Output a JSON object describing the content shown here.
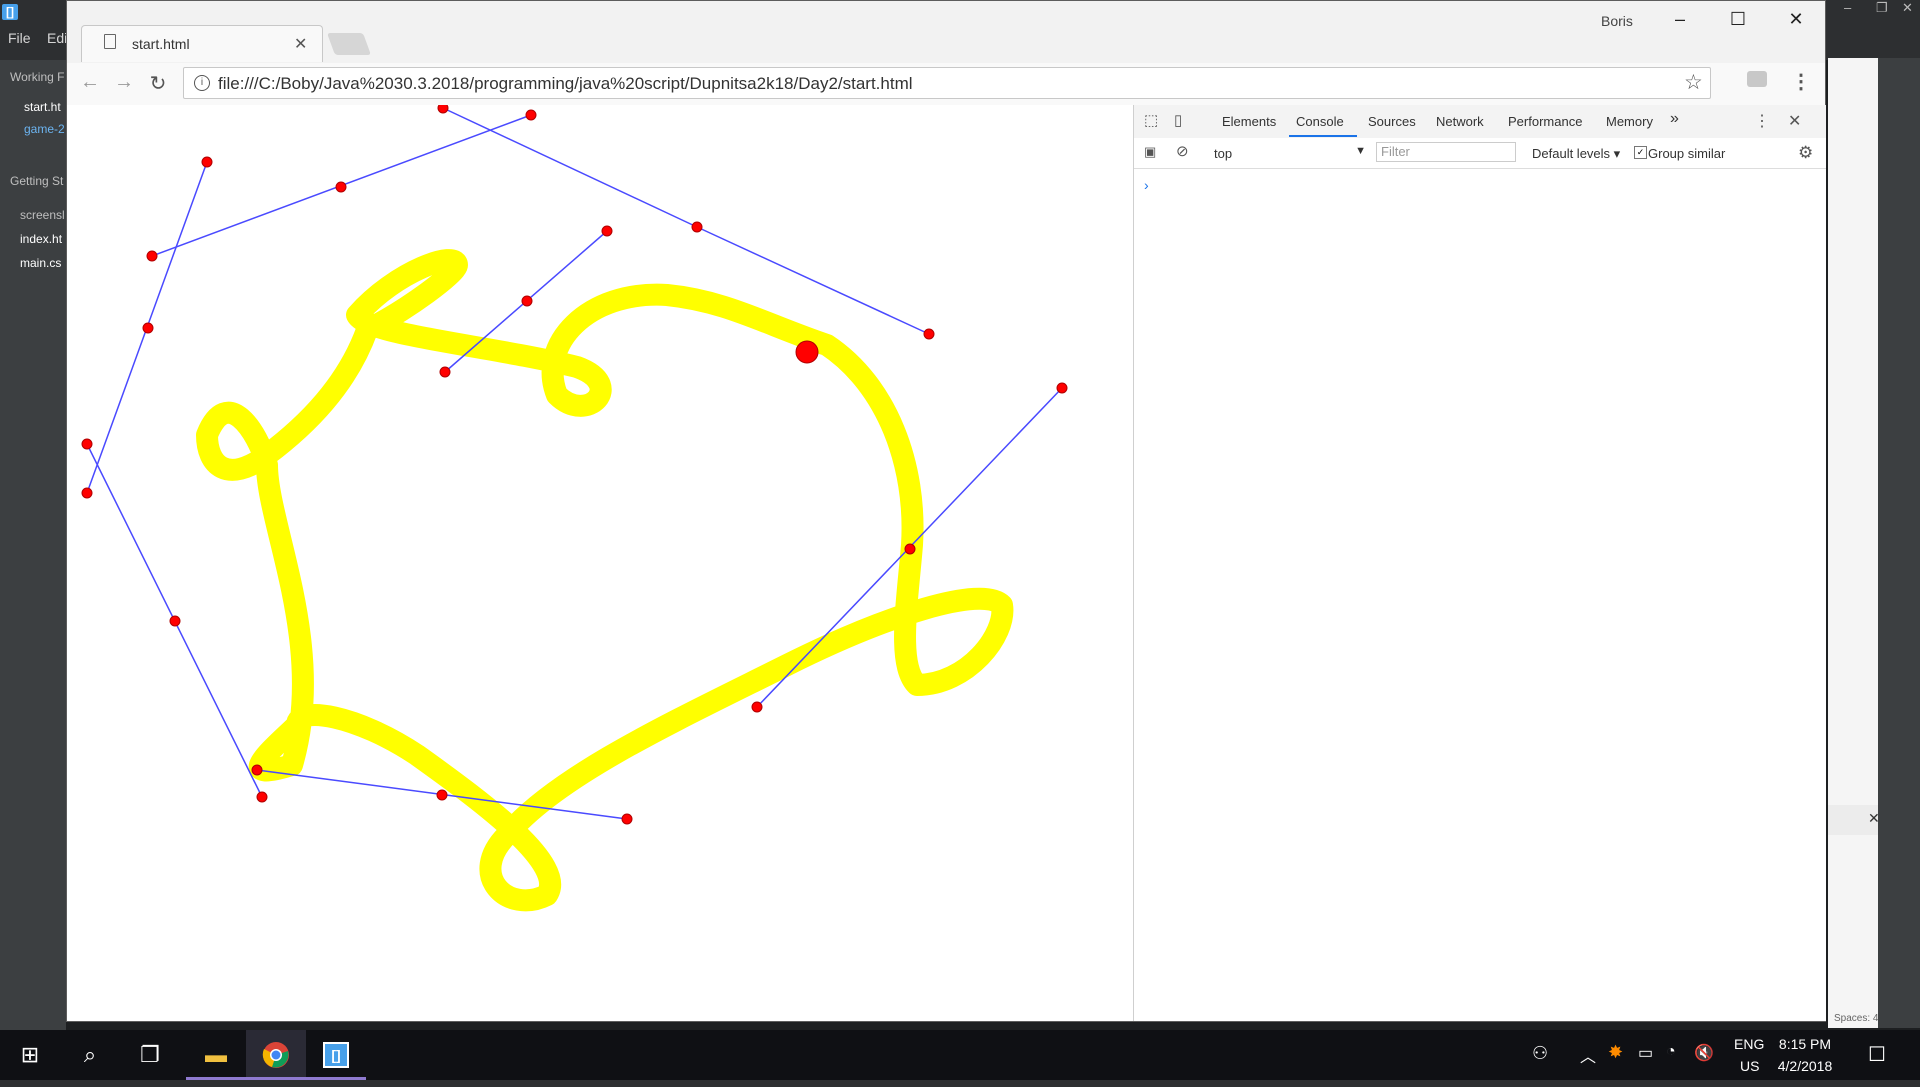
{
  "brackets": {
    "menu": [
      "File",
      "Edi"
    ],
    "sidebar": {
      "working_files": "Working F",
      "files": [
        "start.ht",
        "game-2"
      ],
      "project": "Getting St",
      "tree": [
        "screensl",
        "index.ht",
        "main.cs"
      ]
    },
    "status_spaces": "Spaces: 4"
  },
  "chrome": {
    "tab_title": "start.html",
    "user": "Boris",
    "url": "file:///C:/Boby/Java%2030.3.2018/programming/java%20script/Dupnitsa2k18/Day2/start.html"
  },
  "devtools": {
    "tabs": [
      "Elements",
      "Console",
      "Sources",
      "Network",
      "Performance",
      "Memory"
    ],
    "more": "»",
    "context": "top",
    "filter_placeholder": "Filter",
    "levels": "Default levels",
    "group_similar": "Group similar",
    "prompt": "›"
  },
  "taskbar": {
    "lang_top": "ENG",
    "lang_bottom": "US",
    "time": "8:15 PM",
    "date": "4/2/2018"
  },
  "colors": {
    "curve": "#ffff00",
    "handle_line": "#4a4aff",
    "point": "#ff0000",
    "accent": "#1a73e8"
  },
  "icons": [
    "info-icon",
    "star-icon",
    "kebab-icon",
    "gear-icon",
    "close-icon",
    "windows-icon",
    "search-icon",
    "task-view-icon",
    "explorer-icon",
    "chrome-icon",
    "brackets-icon"
  ]
}
